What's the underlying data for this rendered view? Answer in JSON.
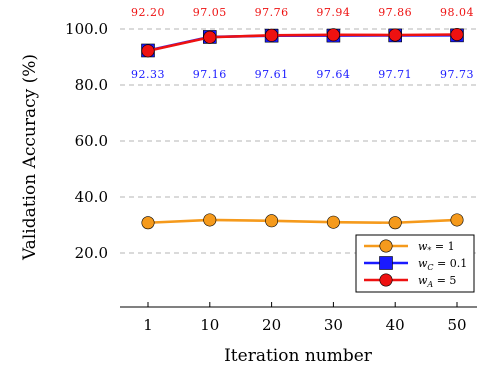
{
  "chart_data": {
    "type": "line",
    "categories": [
      "1",
      "10",
      "20",
      "30",
      "40",
      "50"
    ],
    "xlabel": "Iteration number",
    "ylabel": "Validation Accuracy (%)",
    "ylim": [
      0,
      100
    ],
    "yticks": [
      20.0,
      40.0,
      60.0,
      80.0,
      100.0
    ],
    "ytick_labels": [
      "20.0",
      "40.0",
      "60.0",
      "80.0",
      "100.0"
    ],
    "grid": "horizontal-dashed",
    "legend_position": "bottom-right",
    "series": [
      {
        "name": "w_* = 1",
        "color": "#f59a1c",
        "marker": "circle",
        "values": [
          30.8,
          31.8,
          31.5,
          31.0,
          30.8,
          31.8
        ]
      },
      {
        "name": "w_C = 0.1",
        "color": "#1a1aff",
        "marker": "square",
        "values": [
          92.33,
          97.16,
          97.61,
          97.64,
          97.71,
          97.73
        ],
        "data_labels": [
          "92.33",
          "97.16",
          "97.61",
          "97.64",
          "97.71",
          "97.73"
        ],
        "label_position": "below"
      },
      {
        "name": "w_A = 5",
        "color": "#ee1111",
        "marker": "circle",
        "values": [
          92.2,
          97.05,
          97.76,
          97.94,
          97.86,
          98.04
        ],
        "data_labels": [
          "92.20",
          "97.05",
          "97.76",
          "97.94",
          "97.86",
          "98.04"
        ],
        "label_position": "above"
      }
    ],
    "legend": [
      {
        "base": "w",
        "sub": "*",
        "rest": " = 1"
      },
      {
        "base": "w",
        "sub": "C",
        "rest": " = 0.1"
      },
      {
        "base": "w",
        "sub": "A",
        "rest": " = 5"
      }
    ]
  }
}
